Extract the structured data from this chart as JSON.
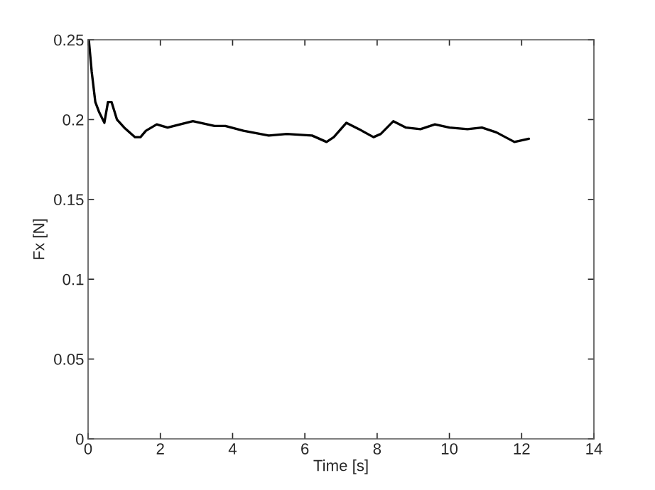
{
  "chart_data": {
    "type": "line",
    "xlabel": "Time [s]",
    "ylabel": "Fx [N]",
    "xlim": [
      0,
      14
    ],
    "ylim": [
      0,
      0.25
    ],
    "xticks": [
      0,
      2,
      4,
      6,
      8,
      10,
      12,
      14
    ],
    "yticks": [
      0,
      0.05,
      0.1,
      0.15,
      0.2,
      0.25
    ],
    "grid": false,
    "legend": false,
    "series": [
      {
        "color": "#000000",
        "x": [
          0.02,
          0.1,
          0.2,
          0.3,
          0.45,
          0.55,
          0.65,
          0.8,
          1.0,
          1.3,
          1.45,
          1.6,
          1.9,
          2.2,
          2.9,
          3.5,
          3.8,
          4.3,
          5.0,
          5.5,
          6.2,
          6.6,
          6.8,
          7.15,
          7.5,
          7.9,
          8.1,
          8.45,
          8.8,
          9.2,
          9.6,
          10.0,
          10.5,
          10.9,
          11.3,
          11.8,
          12.0,
          12.2
        ],
        "values": [
          0.25,
          0.23,
          0.211,
          0.205,
          0.198,
          0.211,
          0.211,
          0.2,
          0.195,
          0.189,
          0.189,
          0.193,
          0.197,
          0.195,
          0.199,
          0.196,
          0.196,
          0.193,
          0.19,
          0.191,
          0.19,
          0.186,
          0.189,
          0.198,
          0.194,
          0.189,
          0.191,
          0.199,
          0.195,
          0.194,
          0.197,
          0.195,
          0.194,
          0.195,
          0.192,
          0.186,
          0.187,
          0.188
        ]
      }
    ]
  }
}
